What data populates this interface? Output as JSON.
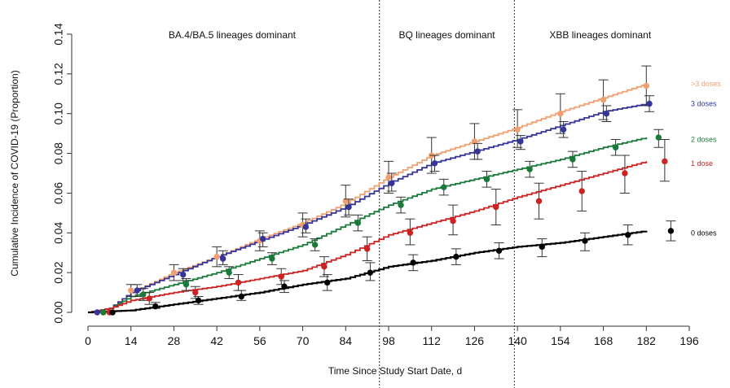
{
  "chart_data": {
    "type": "line",
    "title": "",
    "xlabel": "Time Since Study Start Date, d",
    "ylabel": "Cumulative Incidence of COVID-19 (Proportion)",
    "xlim": [
      0,
      196
    ],
    "ylim": [
      0,
      0.14
    ],
    "x_ticks": [
      "0",
      "14",
      "28",
      "42",
      "56",
      "70",
      "84",
      "98",
      "112",
      "126",
      "140",
      "154",
      "168",
      "182",
      "196"
    ],
    "x_tick_values": [
      0,
      14,
      28,
      42,
      56,
      70,
      84,
      98,
      112,
      126,
      140,
      154,
      168,
      182,
      196
    ],
    "y_ticks": [
      "0.00",
      "0.02",
      "0.04",
      "0.06",
      "0.08",
      "0.10",
      "0.12",
      "0.14"
    ],
    "y_tick_values": [
      0,
      0.02,
      0.04,
      0.06,
      0.08,
      0.1,
      0.12,
      0.14
    ],
    "period_boundaries": [
      95,
      139
    ],
    "periods": [
      {
        "label": "BA.4/BA.5 lineages dominant",
        "center_x": 47
      },
      {
        "label": "BQ lineages dominant",
        "center_x": 117
      },
      {
        "label": "XBB lineages dominant",
        "center_x": 167
      }
    ],
    "series": [
      {
        "name": ">3 doses",
        "color": "#f0a070",
        "curve": [
          [
            0,
            0
          ],
          [
            7,
            0.002
          ],
          [
            14,
            0.01
          ],
          [
            28,
            0.02
          ],
          [
            42,
            0.028
          ],
          [
            56,
            0.037
          ],
          [
            70,
            0.045
          ],
          [
            84,
            0.055
          ],
          [
            98,
            0.068
          ],
          [
            112,
            0.079
          ],
          [
            126,
            0.086
          ],
          [
            140,
            0.093
          ],
          [
            154,
            0.101
          ],
          [
            168,
            0.108
          ],
          [
            182,
            0.115
          ]
        ],
        "points": [
          [
            5,
            0,
            0,
            0
          ],
          [
            182,
            0.114,
            0.104,
            0.124
          ],
          [
            168,
            0.107,
            0.097,
            0.117
          ],
          [
            154,
            0.1,
            0.09,
            0.11
          ],
          [
            140,
            0.092,
            0.083,
            0.102
          ],
          [
            126,
            0.086,
            0.077,
            0.095
          ],
          [
            112,
            0.079,
            0.07,
            0.088
          ],
          [
            98,
            0.068,
            0.06,
            0.076
          ],
          [
            84,
            0.056,
            0.048,
            0.064
          ],
          [
            70,
            0.044,
            0.038,
            0.05
          ],
          [
            56,
            0.036,
            0.031,
            0.041
          ],
          [
            42,
            0.028,
            0.023,
            0.033
          ],
          [
            28,
            0.02,
            0.016,
            0.024
          ],
          [
            14,
            0.011,
            0.008,
            0.014
          ]
        ]
      },
      {
        "name": "3 doses",
        "color": "#34349a",
        "curve": [
          [
            0,
            0
          ],
          [
            7,
            0.002
          ],
          [
            14,
            0.01
          ],
          [
            28,
            0.019
          ],
          [
            42,
            0.028
          ],
          [
            56,
            0.036
          ],
          [
            70,
            0.044
          ],
          [
            84,
            0.053
          ],
          [
            98,
            0.065
          ],
          [
            112,
            0.075
          ],
          [
            126,
            0.081
          ],
          [
            140,
            0.087
          ],
          [
            154,
            0.094
          ],
          [
            168,
            0.101
          ],
          [
            182,
            0.105
          ]
        ],
        "points": [
          [
            3,
            0,
            0,
            0
          ],
          [
            16,
            0.011,
            0.008,
            0.014
          ],
          [
            31,
            0.019,
            0.016,
            0.022
          ],
          [
            44,
            0.027,
            0.024,
            0.031
          ],
          [
            57,
            0.037,
            0.033,
            0.04
          ],
          [
            71,
            0.043,
            0.04,
            0.047
          ],
          [
            85,
            0.053,
            0.049,
            0.057
          ],
          [
            99,
            0.065,
            0.061,
            0.07
          ],
          [
            113,
            0.075,
            0.071,
            0.079
          ],
          [
            127,
            0.081,
            0.077,
            0.085
          ],
          [
            141,
            0.086,
            0.082,
            0.089
          ],
          [
            155,
            0.092,
            0.088,
            0.096
          ],
          [
            169,
            0.1,
            0.096,
            0.104
          ],
          [
            183,
            0.105,
            0.101,
            0.109
          ]
        ]
      },
      {
        "name": "2 doses",
        "color": "#1a7a3a",
        "curve": [
          [
            0,
            0
          ],
          [
            7,
            0.002
          ],
          [
            14,
            0.008
          ],
          [
            28,
            0.014
          ],
          [
            42,
            0.02
          ],
          [
            56,
            0.027
          ],
          [
            70,
            0.034
          ],
          [
            84,
            0.044
          ],
          [
            98,
            0.054
          ],
          [
            112,
            0.062
          ],
          [
            126,
            0.067
          ],
          [
            140,
            0.072
          ],
          [
            154,
            0.077
          ],
          [
            168,
            0.083
          ],
          [
            182,
            0.088
          ]
        ],
        "points": [
          [
            5,
            0,
            0,
            0
          ],
          [
            18,
            0.009,
            0.006,
            0.012
          ],
          [
            32,
            0.014,
            0.011,
            0.017
          ],
          [
            46,
            0.02,
            0.017,
            0.023
          ],
          [
            60,
            0.027,
            0.024,
            0.03
          ],
          [
            74,
            0.034,
            0.031,
            0.037
          ],
          [
            88,
            0.045,
            0.041,
            0.049
          ],
          [
            102,
            0.054,
            0.05,
            0.058
          ],
          [
            116,
            0.063,
            0.059,
            0.067
          ],
          [
            130,
            0.067,
            0.063,
            0.071
          ],
          [
            144,
            0.072,
            0.068,
            0.076
          ],
          [
            158,
            0.077,
            0.073,
            0.081
          ],
          [
            172,
            0.083,
            0.079,
            0.087
          ],
          [
            186,
            0.088,
            0.083,
            0.092
          ]
        ]
      },
      {
        "name": "1 dose",
        "color": "#cc2222",
        "curve": [
          [
            0,
            0
          ],
          [
            7,
            0.002
          ],
          [
            14,
            0.006
          ],
          [
            28,
            0.01
          ],
          [
            42,
            0.013
          ],
          [
            56,
            0.017
          ],
          [
            70,
            0.021
          ],
          [
            84,
            0.029
          ],
          [
            98,
            0.039
          ],
          [
            112,
            0.045
          ],
          [
            126,
            0.051
          ],
          [
            140,
            0.058
          ],
          [
            154,
            0.064
          ],
          [
            168,
            0.07
          ],
          [
            182,
            0.076
          ]
        ],
        "points": [
          [
            7,
            0,
            0,
            0
          ],
          [
            20,
            0.007,
            0.004,
            0.01
          ],
          [
            35,
            0.01,
            0.007,
            0.013
          ],
          [
            49,
            0.015,
            0.011,
            0.019
          ],
          [
            63,
            0.018,
            0.014,
            0.022
          ],
          [
            77,
            0.023,
            0.018,
            0.028
          ],
          [
            91,
            0.032,
            0.026,
            0.038
          ],
          [
            105,
            0.04,
            0.034,
            0.047
          ],
          [
            119,
            0.046,
            0.039,
            0.054
          ],
          [
            133,
            0.053,
            0.044,
            0.062
          ],
          [
            147,
            0.056,
            0.047,
            0.065
          ],
          [
            161,
            0.061,
            0.051,
            0.071
          ],
          [
            175,
            0.07,
            0.06,
            0.079
          ],
          [
            188,
            0.076,
            0.066,
            0.087
          ]
        ]
      },
      {
        "name": "0 doses",
        "color": "#000000",
        "curve": [
          [
            0,
            0
          ],
          [
            14,
            0.001
          ],
          [
            28,
            0.004
          ],
          [
            42,
            0.007
          ],
          [
            56,
            0.01
          ],
          [
            70,
            0.014
          ],
          [
            84,
            0.017
          ],
          [
            98,
            0.023
          ],
          [
            112,
            0.026
          ],
          [
            126,
            0.03
          ],
          [
            140,
            0.033
          ],
          [
            154,
            0.035
          ],
          [
            168,
            0.038
          ],
          [
            182,
            0.041
          ]
        ],
        "points": [
          [
            8,
            0,
            0,
            0
          ],
          [
            22,
            0.003,
            0.002,
            0.005
          ],
          [
            36,
            0.006,
            0.004,
            0.008
          ],
          [
            50,
            0.008,
            0.006,
            0.011
          ],
          [
            64,
            0.013,
            0.01,
            0.016
          ],
          [
            78,
            0.015,
            0.011,
            0.019
          ],
          [
            92,
            0.02,
            0.016,
            0.025
          ],
          [
            106,
            0.025,
            0.021,
            0.029
          ],
          [
            120,
            0.028,
            0.024,
            0.032
          ],
          [
            134,
            0.031,
            0.027,
            0.035
          ],
          [
            148,
            0.033,
            0.028,
            0.037
          ],
          [
            162,
            0.036,
            0.031,
            0.04
          ],
          [
            176,
            0.039,
            0.034,
            0.044
          ],
          [
            190,
            0.041,
            0.036,
            0.046
          ]
        ]
      }
    ],
    "legend_labels": [
      ">3 doses",
      "3 doses",
      "2 doses",
      "1 dose",
      "0 doses"
    ],
    "legend_y_values": [
      0.115,
      0.105,
      0.087,
      0.075,
      0.04
    ]
  }
}
